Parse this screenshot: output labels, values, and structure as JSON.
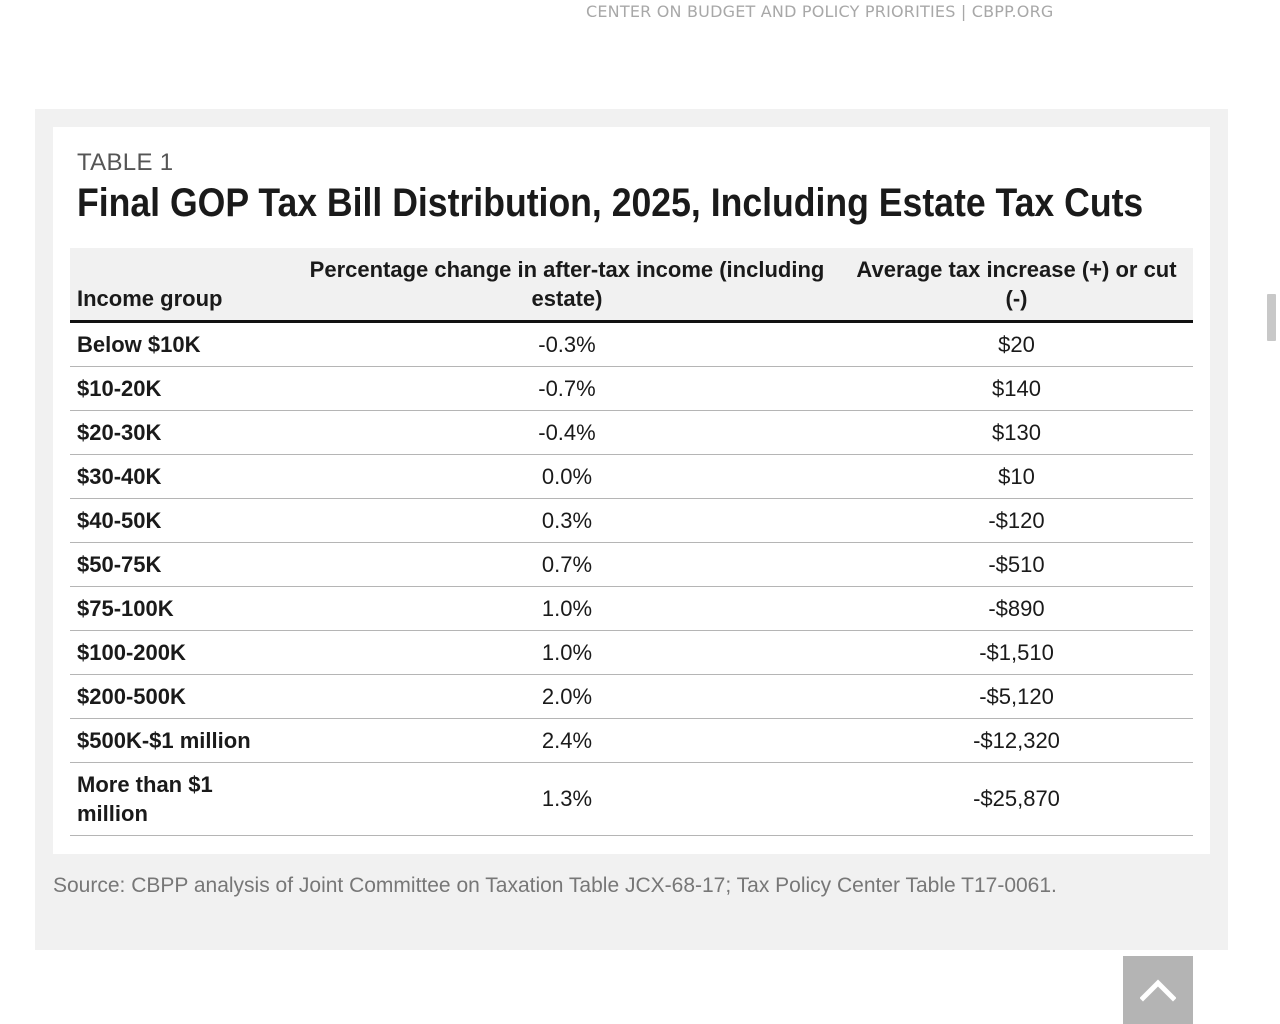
{
  "header": {
    "org_caption": "CENTER ON BUDGET AND POLICY PRIORITIES | CBPP.ORG"
  },
  "figure": {
    "label": "TABLE 1",
    "title": "Final GOP Tax Bill Distribution, 2025, Including Estate Tax Cuts",
    "columns": {
      "group": "Income group",
      "pct": "Percentage change in after-tax income (including estate)",
      "avg": "Average tax increase (+) or cut (-)"
    },
    "rows": [
      {
        "group": "Below $10K",
        "pct": "-0.3%",
        "avg": "$20"
      },
      {
        "group": "$10-20K",
        "pct": "-0.7%",
        "avg": "$140"
      },
      {
        "group": "$20-30K",
        "pct": "-0.4%",
        "avg": "$130"
      },
      {
        "group": "$30-40K",
        "pct": "0.0%",
        "avg": "$10"
      },
      {
        "group": "$40-50K",
        "pct": "0.3%",
        "avg": "-$120"
      },
      {
        "group": "$50-75K",
        "pct": "0.7%",
        "avg": "-$510"
      },
      {
        "group": "$75-100K",
        "pct": "1.0%",
        "avg": "-$890"
      },
      {
        "group": "$100-200K",
        "pct": "1.0%",
        "avg": "-$1,510"
      },
      {
        "group": "$200-500K",
        "pct": "2.0%",
        "avg": "-$5,120"
      },
      {
        "group": "$500K-$1 million",
        "pct": "2.4%",
        "avg": "-$12,320"
      },
      {
        "group": "More than $1 million",
        "pct": "1.3%",
        "avg": "-$25,870"
      }
    ],
    "source": "Source: CBPP analysis of Joint Committee on Taxation Table JCX-68-17; Tax Policy Center Table T17-0061."
  },
  "controls": {
    "scroll_top_icon": "chevron-up-icon",
    "accent_color": "#b4b4b4"
  }
}
